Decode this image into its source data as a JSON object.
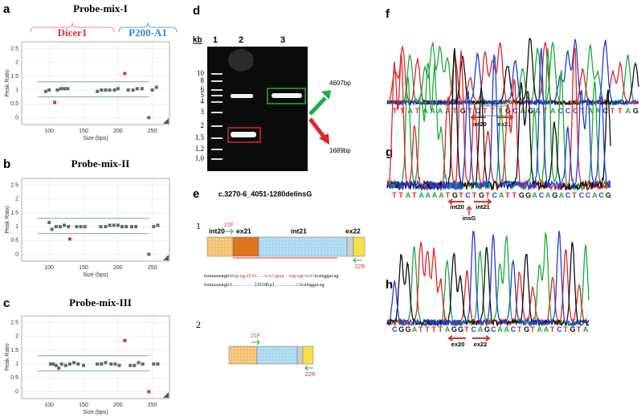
{
  "chart_data": [
    {
      "type": "scatter",
      "label": "a",
      "title": "Probe-mix-I",
      "annotations": [
        "Dicer1",
        "P200-A1"
      ],
      "xlabel": "Size (bps)",
      "ylabel": "Peak Ratio",
      "xlim": [
        60,
        275
      ],
      "ylim": [
        -0.25,
        2.75
      ],
      "xticks": [
        100,
        150,
        200,
        250
      ],
      "yticks": [
        0,
        0.5,
        1,
        1.5,
        2,
        2.5
      ],
      "hlines": [
        1.3,
        0.75
      ],
      "grid": true,
      "series": [
        {
          "color": "#5f6b66",
          "x": [
            95,
            100,
            112,
            117,
            122,
            127,
            170,
            176,
            182,
            188,
            195,
            200,
            215,
            222,
            228,
            235,
            245,
            250,
            256
          ],
          "values": [
            0.95,
            1.0,
            1.0,
            1.05,
            1.05,
            1.05,
            0.95,
            1.0,
            1.0,
            1.0,
            1.0,
            1.05,
            1.0,
            1.0,
            1.05,
            1.05,
            0.0,
            1.0,
            1.1
          ]
        },
        {
          "color": "#d9342b",
          "x": [
            108,
            210
          ],
          "values": [
            0.55,
            1.6
          ]
        }
      ]
    },
    {
      "type": "scatter",
      "label": "b",
      "title": "Probe-mix-II",
      "xlabel": "Size (bps)",
      "ylabel": "Peak Ratio",
      "xlim": [
        60,
        275
      ],
      "ylim": [
        -0.25,
        2.75
      ],
      "xticks": [
        100,
        150,
        200,
        250
      ],
      "yticks": [
        0,
        0.5,
        1,
        1.5,
        2,
        2.5
      ],
      "hlines": [
        1.3,
        0.75
      ],
      "grid": true,
      "series": [
        {
          "color": "#5f6b66",
          "x": [
            100,
            104,
            110,
            116,
            122,
            128,
            140,
            146,
            152,
            175,
            182,
            188,
            194,
            200,
            206,
            212,
            220,
            226,
            245,
            252,
            258
          ],
          "values": [
            1.15,
            0.9,
            1.0,
            1.0,
            1.05,
            1.0,
            1.0,
            1.0,
            1.0,
            1.0,
            1.0,
            1.05,
            1.05,
            1.05,
            1.0,
            1.0,
            1.0,
            1.0,
            0.0,
            1.0,
            1.05
          ]
        },
        {
          "color": "#d9342b",
          "x": [
            130
          ],
          "values": [
            0.55
          ]
        }
      ]
    },
    {
      "type": "scatter",
      "label": "c",
      "title": "Probe-mix-III",
      "xlabel": "Size (bps)",
      "ylabel": "Peak Ratio",
      "xlim": [
        60,
        275
      ],
      "ylim": [
        -0.25,
        2.75
      ],
      "xticks": [
        100,
        150,
        200,
        250
      ],
      "yticks": [
        0,
        0.5,
        1,
        1.5,
        2,
        2.5
      ],
      "hlines": [
        1.3,
        0.75
      ],
      "grid": true,
      "series": [
        {
          "color": "#5f6b66",
          "x": [
            102,
            106,
            110,
            114,
            118,
            124,
            130,
            136,
            142,
            150,
            170,
            176,
            182,
            190,
            196,
            202,
            218,
            224,
            230,
            236,
            252,
            258
          ],
          "values": [
            1.0,
            1.0,
            0.95,
            0.85,
            1.0,
            0.95,
            1.0,
            1.05,
            1.0,
            0.95,
            1.0,
            1.0,
            1.05,
            1.0,
            1.0,
            0.95,
            0.95,
            0.95,
            1.05,
            1.0,
            1.0,
            1.0
          ]
        },
        {
          "color": "#d9342b",
          "x": [
            210,
            245
          ],
          "values": [
            1.85,
            0.0
          ]
        }
      ]
    }
  ],
  "gel": {
    "label": "d",
    "unit": "kb",
    "lanes": [
      "1",
      "2",
      "3"
    ],
    "ladder": [
      "10",
      "8",
      "6",
      "5",
      "4",
      "3",
      "2",
      "1.5",
      "1.2",
      "1.0"
    ],
    "bands": [
      "4607bp",
      "1689bp"
    ]
  },
  "diagram": {
    "label": "e",
    "title": "c.3270-6_4051-1280delinsG",
    "constructs": [
      "1",
      "2"
    ],
    "regions": [
      "int20",
      "ex21",
      "int21",
      "ex22"
    ],
    "primers": [
      "21F",
      "22R"
    ],
    "line1": [
      {
        "text": "ttataaaaatgtct",
        "color": "#222222"
      },
      {
        "text": "ttgcagATAC…AAGgtaa…ttgcagc",
        "color": "#d9342b"
      },
      {
        "text": "insG",
        "color": "#2a9a3a"
      },
      {
        "text": "tcattggacag",
        "color": "#222222"
      }
    ],
    "line2": [
      {
        "text": "ttataaaaatgtct………… [2918bp] …………",
        "color": "#222222"
      },
      {
        "text": "G",
        "color": "#2a9a3a"
      },
      {
        "text": "tcattggacag",
        "color": "#222222"
      }
    ]
  },
  "chromatograms": [
    {
      "label": "f",
      "sequence": "TTATAAAATGTCTTTGCAGATACCCTAACTTAG",
      "annotations": [
        "int20",
        "ex21"
      ]
    },
    {
      "label": "g",
      "sequence": "TTATAAAATGTCTGTCATTGGACAGACTCCACG",
      "annotations": [
        "int20",
        "int21",
        "insG"
      ]
    },
    {
      "label": "h",
      "sequence": "CGGATTTTAGGTCAGCAACTGTAATCTGTA",
      "annotations": [
        "ex20",
        "ex22"
      ]
    }
  ]
}
